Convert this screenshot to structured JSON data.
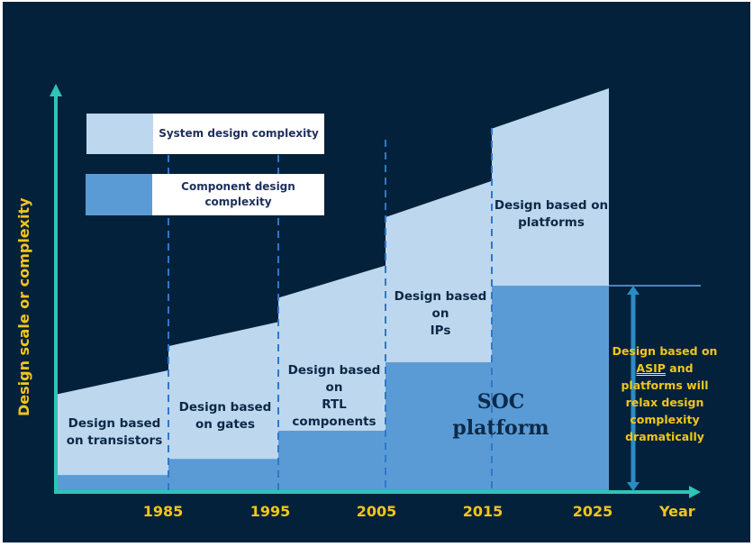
{
  "chart_data": {
    "type": "area",
    "title": "",
    "xlabel": "Year",
    "ylabel": "Design scale or complexity",
    "x_ticks": [
      "1985",
      "1995",
      "2005",
      "2015",
      "2025"
    ],
    "ylim": [
      0,
      100
    ],
    "legend": [
      {
        "name": "System design complexity",
        "color": "#bdd7ee"
      },
      {
        "name": "Component design\ncomplexity",
        "color": "#5b9bd5"
      }
    ],
    "segments": [
      {
        "label": "Design based\non transistors",
        "period": "before 1985",
        "system_start": 24,
        "system_end": 30,
        "component": 4
      },
      {
        "label": "Design based\non gates",
        "period": "1985-1995",
        "system_start": 36,
        "system_end": 42,
        "component": 8
      },
      {
        "label": "Design based on\nRTL components",
        "period": "1995-2005",
        "system_start": 48,
        "system_end": 56,
        "component": 15
      },
      {
        "label": "Design based on\nIPs",
        "period": "2005-2015",
        "system_start": 68,
        "system_end": 77,
        "component": 32
      },
      {
        "label": "Design based on\nplatforms",
        "period": "2015-2025",
        "system_start": 90,
        "system_end": 100,
        "component": 51
      }
    ],
    "overlay_label": "SOC\nplatform",
    "annotation": {
      "text_before": "Design based on ",
      "underlined": "ASIP",
      "text_after": " and platforms will relax design complexity dramatically"
    }
  },
  "colors": {
    "background": "#04213b",
    "system": "#bdd7ee",
    "component": "#5b9bd5",
    "axis": "#2ec4b6",
    "divider": "#2f78c8",
    "label_yellow": "#f1c61b",
    "double_arrow": "#2b8cc4"
  }
}
